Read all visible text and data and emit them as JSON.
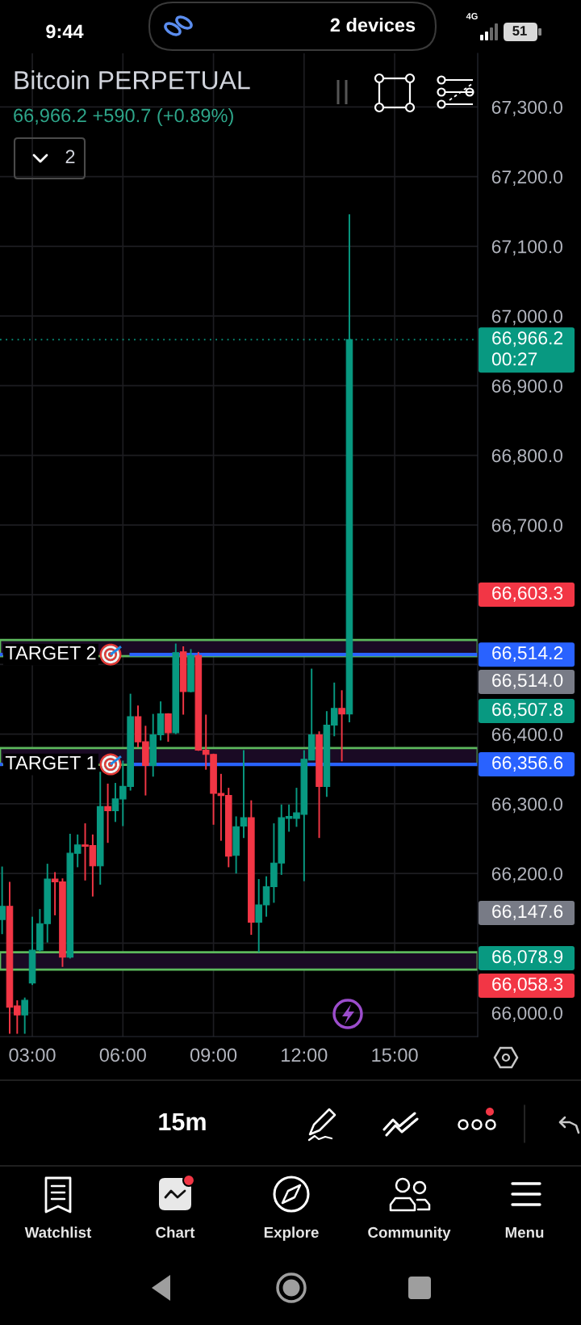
{
  "chart_data": {
    "type": "candlestick",
    "title": "Bitcoin PERPETUAL",
    "subtitle": "66,966.2 +590.7 (+0.89%)",
    "x": [
      2,
      2.25,
      2.5,
      2.75,
      3,
      3.25,
      3.5,
      3.75,
      4,
      4.25,
      4.5,
      4.75,
      5,
      5.25,
      5.5,
      5.75,
      6,
      6.25,
      6.5,
      6.75,
      7,
      7.25,
      7.5,
      7.75,
      8,
      8.25,
      8.5,
      8.75,
      9,
      9.25,
      9.5,
      9.75,
      10,
      10.25,
      10.5,
      10.75,
      11,
      11.25,
      11.5,
      11.75,
      12,
      12.25,
      12.5,
      12.75,
      13,
      13.25,
      13.5
    ],
    "ohlc": [
      [
        66134,
        66210,
        66113,
        66153
      ],
      [
        66153,
        66188,
        65970,
        66008
      ],
      [
        66010,
        66018,
        65970,
        65997
      ],
      [
        65997,
        66022,
        65970,
        66018
      ],
      [
        66043,
        66138,
        66040,
        66090
      ],
      [
        66090,
        66149,
        66088,
        66128
      ],
      [
        66128,
        66214,
        66101,
        66192
      ],
      [
        66192,
        66202,
        66140,
        66188
      ],
      [
        66188,
        66193,
        66066,
        66080
      ],
      [
        66080,
        66257,
        66078,
        66229
      ],
      [
        66229,
        66256,
        66209,
        66241
      ],
      [
        66241,
        66272,
        66190,
        66239
      ],
      [
        66240,
        66256,
        66167,
        66211
      ],
      [
        66211,
        66346,
        66184,
        66296
      ],
      [
        66296,
        66329,
        66244,
        66290
      ],
      [
        66290,
        66330,
        66274,
        66307
      ],
      [
        66307,
        66362,
        66268,
        66325
      ],
      [
        66325,
        66458,
        66319,
        66425
      ],
      [
        66425,
        66441,
        66381,
        66389
      ],
      [
        66389,
        66412,
        66312,
        66355
      ],
      [
        66355,
        66429,
        66339,
        66399
      ],
      [
        66399,
        66447,
        66391,
        66429
      ],
      [
        66429,
        66430,
        66389,
        66402
      ],
      [
        66402,
        66530,
        66400,
        66517
      ],
      [
        66518,
        66526,
        66428,
        66461
      ],
      [
        66461,
        66522,
        66460,
        66513
      ],
      [
        66513,
        66518,
        66376,
        66377
      ],
      [
        66377,
        66428,
        66349,
        66371
      ],
      [
        66371,
        66372,
        66270,
        66315
      ],
      [
        66315,
        66343,
        66247,
        66312
      ],
      [
        66312,
        66323,
        66209,
        66225
      ],
      [
        66226,
        66282,
        66200,
        66267
      ],
      [
        66268,
        66377,
        66251,
        66280
      ],
      [
        66280,
        66305,
        66112,
        66130
      ],
      [
        66130,
        66192,
        66087,
        66155
      ],
      [
        66155,
        66196,
        66138,
        66181
      ],
      [
        66181,
        66272,
        66158,
        66215
      ],
      [
        66215,
        66299,
        66198,
        66280
      ],
      [
        66279,
        66299,
        66260,
        66282
      ],
      [
        66279,
        66323,
        66267,
        66287
      ],
      [
        66285,
        66377,
        66189,
        66364
      ],
      [
        66363,
        66494,
        66363,
        66399
      ],
      [
        66399,
        66404,
        66251,
        66325
      ],
      [
        66325,
        66433,
        66310,
        66413
      ],
      [
        66413,
        66474,
        66397,
        66437
      ],
      [
        66437,
        66463,
        66361,
        66429
      ],
      [
        66429,
        67146,
        66417,
        66966.2
      ]
    ],
    "xlim": [
      1.93,
      17.75
    ],
    "xticks": [
      {
        "value": 3,
        "label": "03:00"
      },
      {
        "value": 6,
        "label": "06:00"
      },
      {
        "value": 9,
        "label": "09:00"
      },
      {
        "value": 12,
        "label": "12:00"
      },
      {
        "value": 15,
        "label": "15:00"
      }
    ],
    "ylim": [
      65966,
      67377
    ],
    "yticks": [
      {
        "value": 66000,
        "label": "66,000.0"
      },
      {
        "value": 66100,
        "label": null
      },
      {
        "value": 66200,
        "label": "66,200.0"
      },
      {
        "value": 66300,
        "label": "66,300.0"
      },
      {
        "value": 66400,
        "label": "66,400.0"
      },
      {
        "value": 66500,
        "label": null
      },
      {
        "value": 66600,
        "label": null
      },
      {
        "value": 66700,
        "label": "66,700.0"
      },
      {
        "value": 66800,
        "label": "66,800.0"
      },
      {
        "value": 66900,
        "label": "66,900.0"
      },
      {
        "value": 67000,
        "label": "67,000.0"
      },
      {
        "value": 67100,
        "label": "67,100.0"
      },
      {
        "value": 67200,
        "label": "67,200.0"
      },
      {
        "value": 67300,
        "label": "67,300.0"
      }
    ],
    "grid": true,
    "ref_lines": [
      {
        "axis": "y",
        "value": 66966.2,
        "label": "66,966.2",
        "color": "#089981",
        "line_style": "dotted"
      },
      {
        "axis": "y",
        "value": 66514.2,
        "label": "66,514.2",
        "color": "#2962ff",
        "line_style": "solid"
      },
      {
        "axis": "y",
        "value": 66356.6,
        "label": "66,356.6",
        "color": "#2962ff",
        "line_style": "solid"
      }
    ],
    "bands": [
      {
        "axis": "y",
        "from": 66512,
        "to": 66535,
        "color": "#5cb85c"
      },
      {
        "axis": "y",
        "from": 66356,
        "to": 66380,
        "color": "#5cb85c"
      },
      {
        "axis": "y",
        "from": 66062,
        "to": 66087,
        "color": "#5cb85c"
      }
    ],
    "annotations": [
      {
        "text": "TARGET 2",
        "x": 2.1,
        "y": 66514.2
      },
      {
        "text": "TARGET 1",
        "x": 2.1,
        "y": 66356.6
      },
      "66,603.3",
      "66,514.0",
      "66,507.8",
      "66,147.6",
      "66,078.9",
      "66,058.3",
      "00:27",
      "9:44",
      "2 devices",
      "4G",
      "51",
      "2",
      "15m",
      "Watchlist",
      "Chart",
      "Explore",
      "Community",
      "Menu"
    ]
  }
}
